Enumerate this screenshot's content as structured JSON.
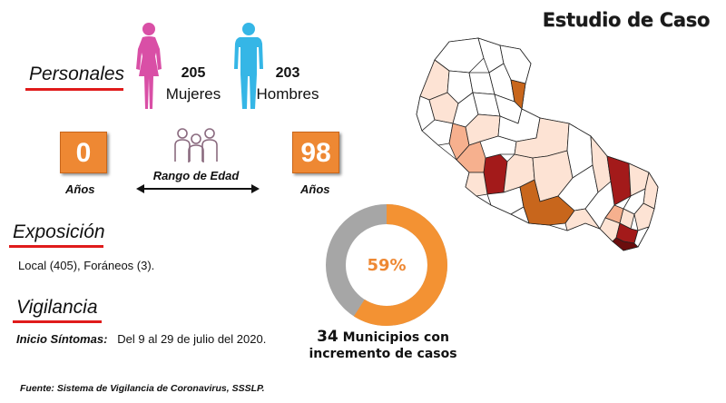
{
  "title": "Estudio de Caso",
  "personales": {
    "label": "Personales",
    "female_count": "205",
    "female_label": "Mujeres",
    "male_count": "203",
    "male_label": "Hombres",
    "min_age": "0",
    "max_age": "98",
    "age_unit": "Años",
    "range_label": "Rango de Edad",
    "colors": {
      "female": "#d94fa6",
      "male": "#35b6e6",
      "age_box": "#ee8833",
      "group_icon": "#8a6a7f"
    }
  },
  "exposicion": {
    "label": "Exposición",
    "text": "Local (405), Foráneos (3)."
  },
  "vigilancia": {
    "label": "Vigilancia",
    "onset_label": "Inicio Síntomas:",
    "onset_value": "Del 9 al 29 de julio del 2020."
  },
  "donut": {
    "percent_label": "59%",
    "percent": 59,
    "colors": {
      "filled": "#f39233",
      "rest": "#a6a6a6"
    }
  },
  "municipios": {
    "count": "34",
    "line1": "Municipios con",
    "line2": "incremento de casos"
  },
  "map": {
    "colors": {
      "none": "#ffffff",
      "low": "#fde3d4",
      "mid": "#f6b08e",
      "orange": "#c8661c",
      "high": "#a31a1a",
      "darkest": "#6b0d0d",
      "border": "#222222"
    }
  },
  "source": "Fuente: Sistema de Vigilancia de Coronavirus, SSSLP."
}
